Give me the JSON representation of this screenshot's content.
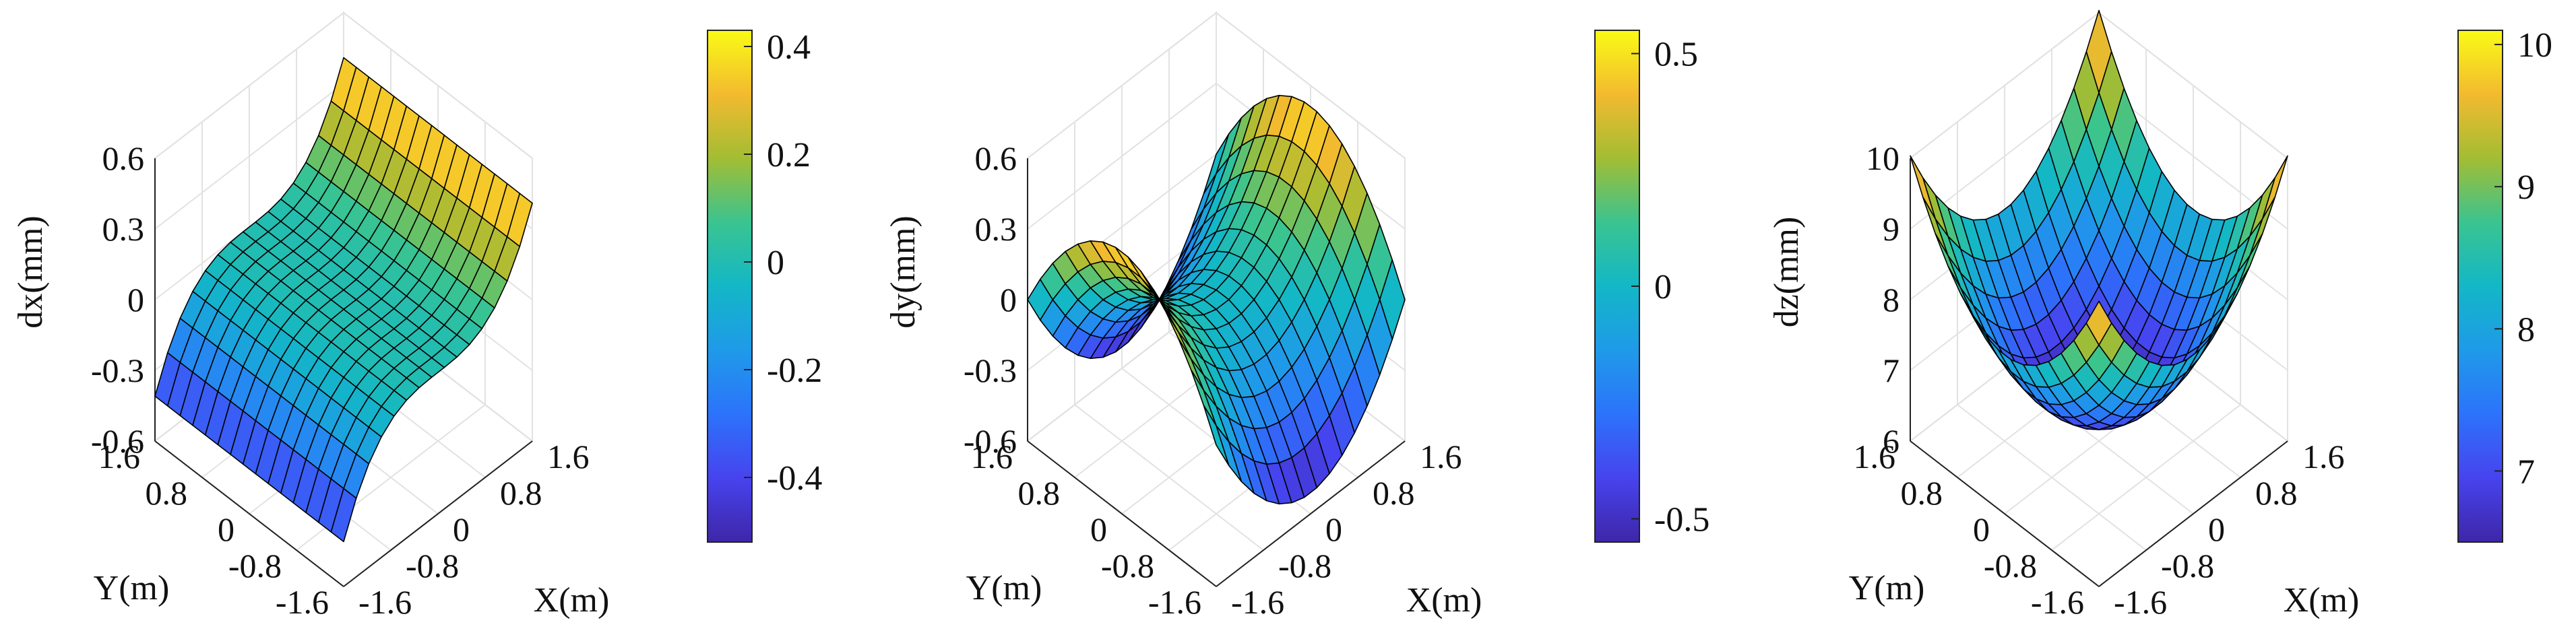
{
  "chart_data": [
    {
      "type": "surface3d",
      "id": "dx",
      "zlabel": "dx(mm)",
      "xlabel": "X(m)",
      "ylabel": "Y(m)",
      "xlim": [
        -1.6,
        1.6
      ],
      "ylim": [
        -1.6,
        1.6
      ],
      "zlim": [
        -0.6,
        0.6
      ],
      "xticks": [
        -1.6,
        -0.8,
        0,
        0.8,
        1.6
      ],
      "xtick_labels": [
        "-1.6",
        "-0.8",
        "0",
        "0.8",
        "1.6"
      ],
      "yticks": [
        -1.6,
        -0.8,
        0,
        0.8,
        1.6
      ],
      "ytick_labels": [
        "-1.6",
        "-0.8",
        "0",
        "0.8",
        "1.6"
      ],
      "zticks": [
        -0.6,
        -0.3,
        0,
        0.3,
        0.6
      ],
      "ztick_labels": [
        "-0.6",
        "-0.3",
        "0",
        "0.3",
        "0.6"
      ],
      "surface_formula": "dx = 0.1*X^3",
      "grid_n": 15,
      "corner_values": [
        {
          "x": -1.6,
          "y": -1.6,
          "z": -0.41
        },
        {
          "x": 1.6,
          "y": -1.6,
          "z": 0.41
        },
        {
          "x": -1.6,
          "y": 1.6,
          "z": -0.41
        },
        {
          "x": 1.6,
          "y": 1.6,
          "z": 0.41
        }
      ],
      "colorbar": {
        "range": [
          -0.52,
          0.43
        ],
        "ticks": [
          -0.4,
          -0.2,
          0,
          0.2,
          0.4
        ],
        "tick_labels": [
          "-0.4",
          "-0.2",
          "0",
          "0.2",
          "0.4"
        ],
        "colormap": "parula"
      }
    },
    {
      "type": "surface3d",
      "id": "dy",
      "zlabel": "dy(mm)",
      "xlabel": "X(m)",
      "ylabel": "Y(m)",
      "xlim": [
        -1.6,
        1.6
      ],
      "ylim": [
        -1.6,
        1.6
      ],
      "zlim": [
        -0.6,
        0.6
      ],
      "xticks": [
        -1.6,
        -0.8,
        0,
        0.8,
        1.6
      ],
      "xtick_labels": [
        "-1.6",
        "-0.8",
        "0",
        "0.8",
        "1.6"
      ],
      "yticks": [
        -1.6,
        -0.8,
        0,
        0.8,
        1.6
      ],
      "ytick_labels": [
        "-1.6",
        "-0.8",
        "0",
        "0.8",
        "1.6"
      ],
      "zticks": [
        -0.6,
        -0.3,
        0,
        0.3,
        0.6
      ],
      "ztick_labels": [
        "-0.6",
        "-0.3",
        "0",
        "0.3",
        "0.6"
      ],
      "surface_formula": "dy = 0.2*(X^2 - Y^2)",
      "grid_n": 15,
      "corner_values": [
        {
          "x": -1.6,
          "y": -1.6,
          "z": 0.0
        },
        {
          "x": 1.6,
          "y": -1.6,
          "z": 0.0
        },
        {
          "x": -1.6,
          "y": 1.6,
          "z": 0.0
        },
        {
          "x": 1.6,
          "y": 1.6,
          "z": 0.0
        },
        {
          "x": 1.6,
          "y": 0,
          "z": 0.51
        },
        {
          "x": 0,
          "y": 1.6,
          "z": -0.51
        }
      ],
      "colorbar": {
        "range": [
          -0.55,
          0.55
        ],
        "ticks": [
          -0.5,
          0,
          0.5
        ],
        "tick_labels": [
          "-0.5",
          "0",
          "0.5"
        ],
        "colormap": "parula"
      }
    },
    {
      "type": "surface3d",
      "id": "dz",
      "zlabel": "dz(mm)",
      "xlabel": "X(m)",
      "ylabel": "Y(m)",
      "xlim": [
        -1.6,
        1.6
      ],
      "ylim": [
        -1.6,
        1.6
      ],
      "zlim": [
        6,
        10
      ],
      "xticks": [
        -1.6,
        -0.8,
        0,
        0.8,
        1.6
      ],
      "xtick_labels": [
        "-1.6",
        "-0.8",
        "0",
        "0.8",
        "1.6"
      ],
      "yticks": [
        -1.6,
        -0.8,
        0,
        0.8,
        1.6
      ],
      "ytick_labels": [
        "-1.6",
        "-0.8",
        "0",
        "0.8",
        "1.6"
      ],
      "zticks": [
        6,
        7,
        8,
        9,
        10
      ],
      "ztick_labels": [
        "6",
        "7",
        "8",
        "9",
        "10"
      ],
      "surface_formula": "dz = 6.45 + 0.7*(X^2 + Y^2)",
      "grid_n": 15,
      "corner_values": [
        {
          "x": 0,
          "y": 0,
          "z": 6.45
        },
        {
          "x": 1.6,
          "y": 1.6,
          "z": 10.03
        }
      ],
      "colorbar": {
        "range": [
          6.5,
          10.1
        ],
        "ticks": [
          7,
          8,
          9,
          10
        ],
        "tick_labels": [
          "7",
          "8",
          "9",
          "10"
        ],
        "colormap": "parula"
      }
    }
  ]
}
